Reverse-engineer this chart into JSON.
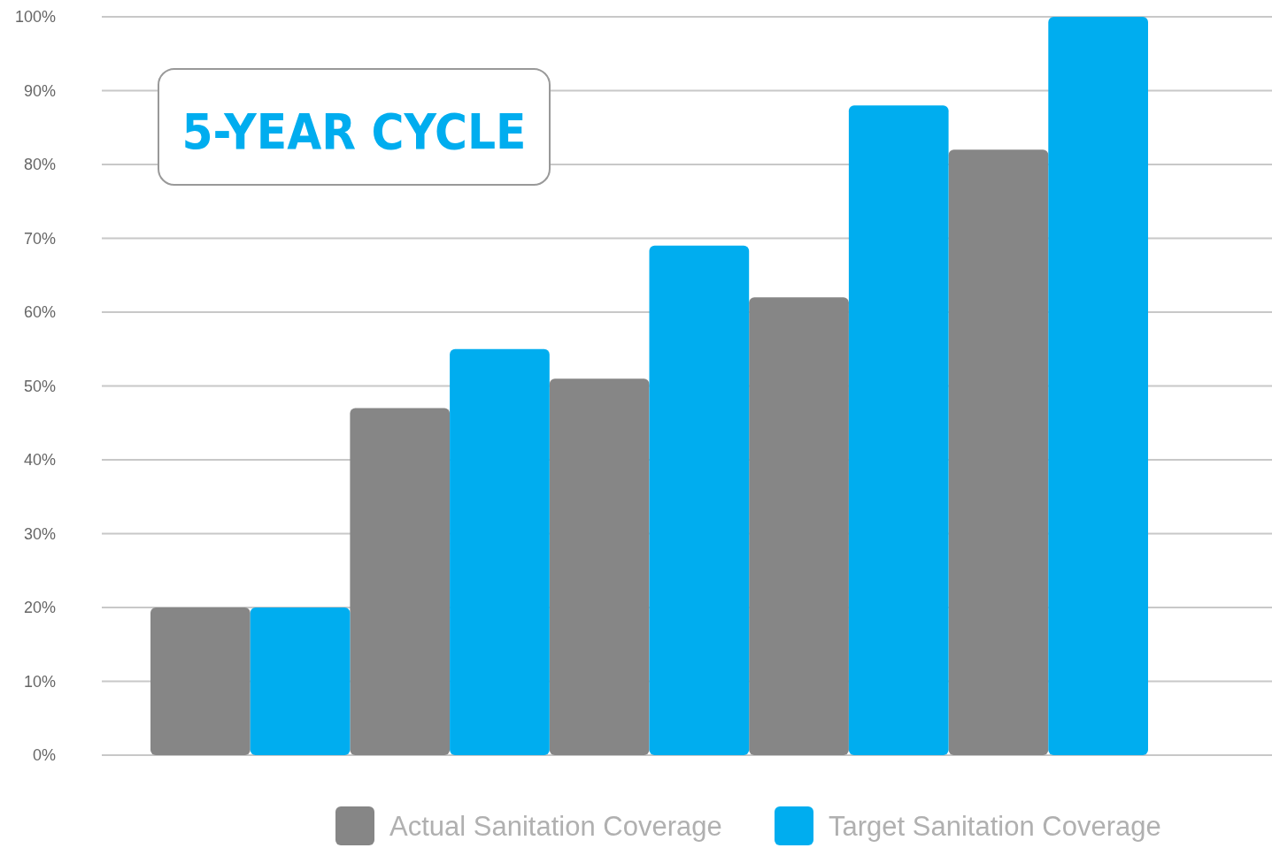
{
  "chart_data": {
    "type": "bar",
    "title": "5-YEAR CYCLE",
    "categories": [
      null,
      null,
      null,
      null,
      null
    ],
    "series": [
      {
        "name": "Actual Sanitation Coverage",
        "color": "#868686",
        "values": [
          20,
          47,
          51,
          62,
          82
        ]
      },
      {
        "name": "Target Sanitation Coverage",
        "color": "#00adef",
        "values": [
          20,
          55,
          69,
          88,
          100
        ]
      }
    ],
    "ylim": [
      0,
      100
    ],
    "yticks": [
      {
        "value": 0,
        "label": "0%"
      },
      {
        "value": 10,
        "label": "10%"
      },
      {
        "value": 20,
        "label": "20%"
      },
      {
        "value": 30,
        "label": "30%"
      },
      {
        "value": 40,
        "label": "40%"
      },
      {
        "value": 50,
        "label": "50%"
      },
      {
        "value": 60,
        "label": "60%"
      },
      {
        "value": 70,
        "label": "70%"
      },
      {
        "value": 80,
        "label": "80%"
      },
      {
        "value": 90,
        "label": "90%"
      },
      {
        "value": 100,
        "label": "100%"
      }
    ],
    "grid": "y",
    "legend": "bottom"
  }
}
